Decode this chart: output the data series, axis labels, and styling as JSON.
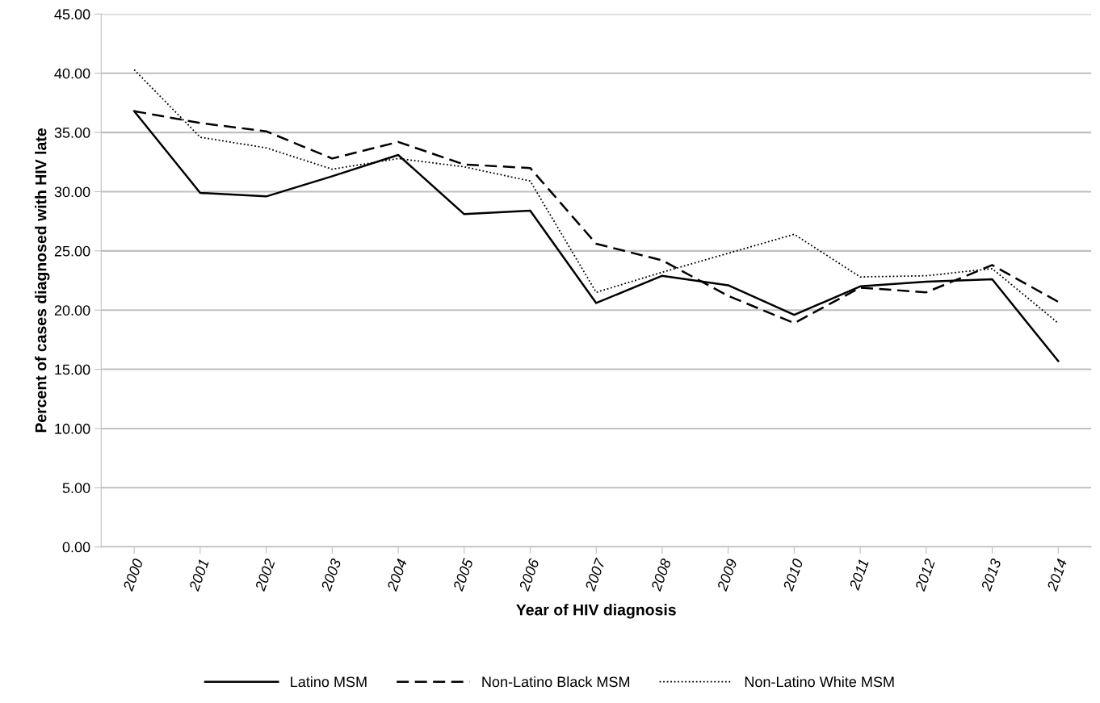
{
  "chart_data": {
    "type": "line",
    "xlabel": "Year of HIV diagnosis",
    "ylabel": "Percent of cases diagnosed with HIV late",
    "categories": [
      "2000",
      "2001",
      "2002",
      "2003",
      "2004",
      "2005",
      "2006",
      "2007",
      "2008",
      "2009",
      "2010",
      "2011",
      "2012",
      "2013",
      "2014"
    ],
    "series": [
      {
        "name": "Latino MSM",
        "color": "#000000",
        "line_style": "solid",
        "values": [
          36.8,
          29.9,
          29.6,
          31.3,
          33.1,
          28.1,
          28.4,
          20.6,
          22.9,
          22.1,
          19.6,
          22.0,
          22.4,
          22.6,
          15.7
        ]
      },
      {
        "name": "Non-Latino Black MSM",
        "color": "#000000",
        "line_style": "dashed",
        "values": [
          36.8,
          35.8,
          35.1,
          32.8,
          34.2,
          32.3,
          32.0,
          25.6,
          24.2,
          21.2,
          18.9,
          21.9,
          21.5,
          23.8,
          20.7
        ]
      },
      {
        "name": "Non-Latino White MSM",
        "color": "#000000",
        "line_style": "dotted",
        "values": [
          40.3,
          34.6,
          33.7,
          31.9,
          32.8,
          32.1,
          30.9,
          21.5,
          23.2,
          24.8,
          26.4,
          22.8,
          22.9,
          23.5,
          18.9
        ]
      }
    ],
    "ylim": [
      0,
      45
    ],
    "yticks": [
      {
        "value": 0,
        "label": "0.00"
      },
      {
        "value": 5,
        "label": "5.00"
      },
      {
        "value": 10,
        "label": "10.00"
      },
      {
        "value": 15,
        "label": "15.00"
      },
      {
        "value": 20,
        "label": "20.00"
      },
      {
        "value": 25,
        "label": "25.00"
      },
      {
        "value": 30,
        "label": "30.00"
      },
      {
        "value": 35,
        "label": "35.00"
      },
      {
        "value": 40,
        "label": "40.00"
      },
      {
        "value": 45,
        "label": "45.00"
      }
    ],
    "grid": "y",
    "legend": "bottom"
  }
}
